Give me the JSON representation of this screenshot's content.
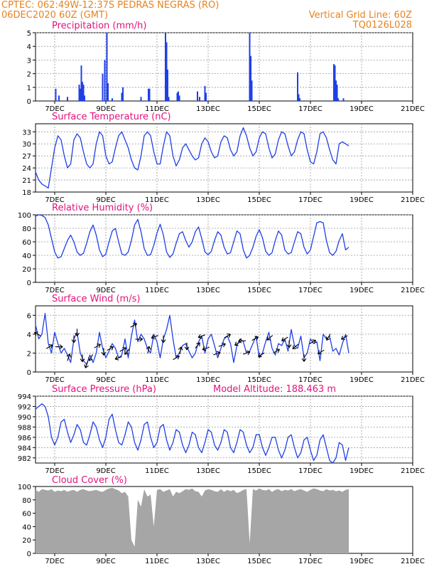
{
  "header": {
    "line1_left": "CPTEC:   062:49W-12:37S   PEDRAS NEGRAS (RO)",
    "line2_left": "06DEC2020 60Z (GMT)",
    "line2_right": "Vertical Grid Line: 60Z",
    "line3_right": "TQ0126L028"
  },
  "colors": {
    "header": "#e8821e",
    "panel_title": "#e3127d",
    "series": "#1f3fe6",
    "cloud": "#a6a6a6",
    "grid": "#9a9a9a"
  },
  "x_axis": {
    "start": "06DEC2020 06Z",
    "end": "21DEC2020 00Z",
    "tick_labels": [
      "7DEC",
      "9DEC",
      "11DEC",
      "13DEC",
      "15DEC",
      "17DEC",
      "19DEC",
      "21DEC"
    ]
  },
  "chart_data": [
    {
      "id": "precip",
      "type": "bar",
      "title": "Precipitation (mm/h)",
      "ylim": [
        0,
        5
      ],
      "yticks": [
        0,
        1,
        2,
        3,
        4,
        5
      ],
      "grid": true,
      "x_hours": [
        19,
        22,
        30,
        41,
        42,
        43,
        44,
        45,
        46,
        63,
        65,
        67,
        68,
        72,
        81,
        82,
        99,
        106,
        107,
        122,
        123,
        124,
        125,
        133,
        134,
        135,
        152,
        154,
        159,
        160,
        201,
        202,
        203,
        246,
        247,
        248,
        280,
        281,
        282,
        283,
        284,
        289
      ],
      "values": [
        0.9,
        0.4,
        0.3,
        1.2,
        0.9,
        2.6,
        1.4,
        1.2,
        0.4,
        2.0,
        3.0,
        5.0,
        1.3,
        0.2,
        0.6,
        1.0,
        0.3,
        0.9,
        0.9,
        5.0,
        4.3,
        2.3,
        0.3,
        0.6,
        0.7,
        0.4,
        0.7,
        0.3,
        1.1,
        0.6,
        5.0,
        3.3,
        1.5,
        2.1,
        0.5,
        0.2,
        2.7,
        2.6,
        1.5,
        1.2,
        0.2,
        0.2
      ]
    },
    {
      "id": "temp",
      "type": "line",
      "title": "Surface Temperature (nC)",
      "ylim": [
        18,
        35
      ],
      "yticks": [
        18,
        21,
        24,
        27,
        30,
        33
      ],
      "grid": true,
      "x_hours": [
        0,
        3,
        6,
        9,
        12,
        15,
        18,
        21,
        24,
        27,
        30,
        33,
        36,
        39,
        42,
        45,
        48,
        51,
        54,
        57,
        60,
        63,
        66,
        69,
        72,
        75,
        78,
        81,
        84,
        87,
        90,
        93,
        96,
        99,
        102,
        105,
        108,
        111,
        114,
        117,
        120,
        123,
        126,
        129,
        132,
        135,
        138,
        141,
        144,
        147,
        150,
        153,
        156,
        159,
        162,
        165,
        168,
        171,
        174,
        177,
        180,
        183,
        186,
        189,
        192,
        195,
        198,
        201,
        204,
        207,
        210,
        213,
        216,
        219,
        222,
        225,
        228,
        231,
        234,
        237,
        240,
        243,
        246,
        249,
        252,
        255,
        258,
        261,
        264,
        267,
        270,
        273,
        276,
        279,
        282,
        285,
        288,
        291,
        294
      ],
      "values": [
        23,
        21,
        20,
        19.5,
        19,
        24,
        29,
        32,
        31,
        27,
        24,
        25,
        31,
        32.5,
        31.5,
        28,
        25,
        24,
        25,
        30,
        33,
        32,
        27,
        25,
        25.5,
        29,
        32,
        33,
        31,
        29,
        26,
        24,
        23.5,
        27,
        32,
        33,
        32,
        28,
        25,
        25,
        29.5,
        33,
        32,
        27,
        24.5,
        26,
        29,
        30,
        28.5,
        27,
        26,
        26.5,
        30,
        31.5,
        30.5,
        28,
        26.5,
        27,
        30.5,
        32,
        31.5,
        28.5,
        27,
        28,
        32,
        34,
        32,
        29,
        27,
        28,
        31.5,
        33,
        32.5,
        29,
        26.5,
        27.5,
        31,
        33,
        32.5,
        29.5,
        27,
        28,
        31,
        33,
        32.5,
        28.5,
        25.5,
        25,
        28,
        32.5,
        33,
        31.5,
        28.5,
        26,
        25,
        30,
        30.5,
        30,
        29.5
      ]
    },
    {
      "id": "rh",
      "type": "line",
      "title": "Relative Humidity (%)",
      "ylim": [
        0,
        100
      ],
      "yticks": [
        0,
        20,
        40,
        60,
        80,
        100
      ],
      "grid": true,
      "x_hours": [
        0,
        3,
        6,
        9,
        12,
        15,
        18,
        21,
        24,
        27,
        30,
        33,
        36,
        39,
        42,
        45,
        48,
        51,
        54,
        57,
        60,
        63,
        66,
        69,
        72,
        75,
        78,
        81,
        84,
        87,
        90,
        93,
        96,
        99,
        102,
        105,
        108,
        111,
        114,
        117,
        120,
        123,
        126,
        129,
        132,
        135,
        138,
        141,
        144,
        147,
        150,
        153,
        156,
        159,
        162,
        165,
        168,
        171,
        174,
        177,
        180,
        183,
        186,
        189,
        192,
        195,
        198,
        201,
        204,
        207,
        210,
        213,
        216,
        219,
        222,
        225,
        228,
        231,
        234,
        237,
        240,
        243,
        246,
        249,
        252,
        255,
        258,
        261,
        264,
        267,
        270,
        273,
        276,
        279,
        282,
        285,
        288,
        291,
        294
      ],
      "values": [
        98,
        100,
        99,
        96,
        85,
        65,
        45,
        36,
        38,
        50,
        62,
        70,
        60,
        45,
        40,
        43,
        58,
        75,
        85,
        70,
        48,
        38,
        42,
        60,
        76,
        80,
        60,
        42,
        40,
        45,
        62,
        85,
        93,
        75,
        50,
        40,
        41,
        55,
        73,
        86,
        70,
        45,
        37,
        42,
        58,
        72,
        75,
        62,
        52,
        60,
        75,
        82,
        65,
        45,
        41,
        46,
        62,
        75,
        70,
        52,
        42,
        44,
        60,
        76,
        72,
        48,
        36,
        40,
        52,
        68,
        78,
        66,
        46,
        40,
        44,
        62,
        76,
        70,
        48,
        42,
        44,
        60,
        75,
        72,
        52,
        42,
        48,
        68,
        88,
        90,
        88,
        62,
        44,
        40,
        46,
        62,
        72,
        48,
        52
      ]
    },
    {
      "id": "wind",
      "type": "line",
      "title": "Surface Wind (m/s)",
      "ylim": [
        0,
        7
      ],
      "yticks": [
        0,
        2,
        4,
        6
      ],
      "grid": true,
      "x_hours": [
        0,
        3,
        6,
        9,
        12,
        15,
        18,
        21,
        24,
        27,
        30,
        33,
        36,
        39,
        42,
        45,
        48,
        51,
        54,
        57,
        60,
        63,
        66,
        69,
        72,
        75,
        78,
        81,
        84,
        87,
        90,
        93,
        96,
        99,
        102,
        105,
        108,
        111,
        114,
        117,
        120,
        123,
        126,
        129,
        132,
        135,
        138,
        141,
        144,
        147,
        150,
        153,
        156,
        159,
        162,
        165,
        168,
        171,
        174,
        177,
        180,
        183,
        186,
        189,
        192,
        195,
        198,
        201,
        204,
        207,
        210,
        213,
        216,
        219,
        222,
        225,
        228,
        231,
        234,
        237,
        240,
        243,
        246,
        249,
        252,
        255,
        258,
        261,
        264,
        267,
        270,
        273,
        276,
        279,
        282,
        285,
        288,
        291,
        294
      ],
      "values": [
        5.0,
        3.5,
        4.0,
        6.2,
        3.0,
        2.0,
        4.2,
        3.0,
        2.0,
        2.5,
        1.8,
        1.0,
        3.5,
        4.2,
        2.0,
        1.2,
        0.8,
        1.8,
        1.0,
        2.0,
        4.2,
        2.5,
        1.5,
        2.2,
        3.0,
        2.5,
        1.5,
        1.8,
        3.5,
        1.5,
        3.8,
        5.5,
        3.2,
        4.0,
        3.5,
        2.5,
        2.0,
        4.0,
        3.2,
        1.5,
        3.5,
        4.5,
        6.0,
        3.5,
        1.5,
        2.0,
        2.8,
        3.0,
        2.2,
        1.5,
        2.0,
        3.2,
        3.8,
        2.0,
        3.5,
        4.0,
        2.8,
        1.5,
        2.5,
        3.5,
        3.8,
        3.0,
        1.0,
        2.8,
        3.5,
        3.2,
        2.0,
        2.2,
        3.0,
        3.8,
        1.5,
        2.0,
        3.2,
        4.2,
        2.5,
        1.8,
        3.0,
        2.8,
        3.5,
        2.2,
        4.5,
        2.8,
        2.5,
        3.8,
        1.5,
        2.0,
        3.5,
        3.0,
        3.2,
        1.2,
        4.0,
        3.5,
        3.8,
        2.2,
        2.5,
        1.8,
        3.0,
        4.0,
        2.0
      ]
    },
    {
      "id": "pressure",
      "type": "line",
      "title": "Surface Pressure (hPa)",
      "annotation": "Model Altitude: 188.463 m",
      "ylim": [
        981,
        994
      ],
      "yticks": [
        982,
        984,
        986,
        988,
        990,
        992,
        994
      ],
      "grid": true,
      "x_hours": [
        0,
        3,
        6,
        9,
        12,
        15,
        18,
        21,
        24,
        27,
        30,
        33,
        36,
        39,
        42,
        45,
        48,
        51,
        54,
        57,
        60,
        63,
        66,
        69,
        72,
        75,
        78,
        81,
        84,
        87,
        90,
        93,
        96,
        99,
        102,
        105,
        108,
        111,
        114,
        117,
        120,
        123,
        126,
        129,
        132,
        135,
        138,
        141,
        144,
        147,
        150,
        153,
        156,
        159,
        162,
        165,
        168,
        171,
        174,
        177,
        180,
        183,
        186,
        189,
        192,
        195,
        198,
        201,
        204,
        207,
        210,
        213,
        216,
        219,
        222,
        225,
        228,
        231,
        234,
        237,
        240,
        243,
        246,
        249,
        252,
        255,
        258,
        261,
        264,
        267,
        270,
        273,
        276,
        279,
        282,
        285,
        288,
        291,
        294
      ],
      "values": [
        991.5,
        992,
        992.5,
        992,
        990,
        986,
        984.5,
        986,
        989,
        989.5,
        987,
        985,
        986.5,
        988.5,
        987.5,
        985,
        984.5,
        986.5,
        989,
        988,
        985.5,
        984,
        986,
        989.5,
        990.5,
        987.5,
        985,
        984.5,
        986.5,
        989,
        988,
        985,
        983.5,
        985.5,
        988.5,
        989,
        986,
        984,
        985,
        988,
        988.5,
        985.5,
        983.5,
        985,
        987.5,
        987,
        984.5,
        983,
        984.5,
        987,
        986.5,
        984,
        983,
        985,
        987.5,
        987,
        984.5,
        983.5,
        985,
        987.5,
        987,
        984,
        983,
        985,
        987.5,
        987,
        984.5,
        983,
        984,
        986.5,
        986.5,
        984,
        982.5,
        984,
        986,
        986,
        983.5,
        982,
        983.5,
        986,
        986.5,
        984,
        982,
        983,
        985.5,
        986,
        983.5,
        981.5,
        982.5,
        985.5,
        986.5,
        984,
        981.5,
        980.5,
        982,
        985,
        984.5,
        981.5,
        984
      ]
    },
    {
      "id": "cloud",
      "type": "area",
      "title": "Cloud Cover (%)",
      "ylim": [
        0,
        100
      ],
      "yticks": [
        0,
        20,
        40,
        60,
        80,
        100
      ],
      "grid": false,
      "x_hours": [
        0,
        3,
        6,
        9,
        12,
        15,
        18,
        21,
        24,
        27,
        30,
        33,
        36,
        39,
        42,
        45,
        48,
        51,
        54,
        57,
        60,
        63,
        66,
        69,
        72,
        75,
        78,
        81,
        84,
        87,
        90,
        93,
        96,
        99,
        102,
        105,
        108,
        111,
        114,
        117,
        120,
        123,
        126,
        129,
        132,
        135,
        138,
        141,
        144,
        147,
        150,
        153,
        156,
        159,
        162,
        165,
        168,
        171,
        174,
        177,
        180,
        183,
        186,
        189,
        192,
        195,
        198,
        201,
        204,
        207,
        210,
        213,
        216,
        219,
        222,
        225,
        228,
        231,
        234,
        237,
        240,
        243,
        246,
        249,
        252,
        255,
        258,
        261,
        264,
        267,
        270,
        273,
        276,
        279,
        282,
        285,
        288,
        291,
        294
      ],
      "values": [
        95,
        92,
        96,
        95,
        94,
        96,
        92,
        94,
        93,
        95,
        92,
        94,
        95,
        92,
        95,
        96,
        94,
        93,
        94,
        95,
        93,
        92,
        95,
        97,
        98,
        96,
        94,
        90,
        92,
        85,
        20,
        10,
        80,
        70,
        96,
        85,
        88,
        40,
        95,
        96,
        92,
        94,
        96,
        85,
        92,
        90,
        93,
        96,
        95,
        97,
        93,
        92,
        85,
        94,
        96,
        95,
        93,
        92,
        96,
        92,
        95,
        93,
        95,
        90,
        92,
        95,
        96,
        15,
        96,
        94,
        97,
        95,
        94,
        96,
        92,
        95,
        96,
        93,
        95,
        94,
        96,
        93,
        95,
        96,
        94,
        92,
        95,
        97,
        96,
        94,
        93,
        96,
        94,
        95,
        93,
        94,
        92,
        95,
        96
      ]
    }
  ],
  "wind_arrows": {
    "x_hours": [
      2,
      13,
      22,
      31,
      36,
      39,
      44,
      48,
      52,
      58,
      64,
      70,
      78,
      82,
      86,
      92,
      97,
      106,
      112,
      120,
      132,
      136,
      142,
      152,
      156,
      160,
      170,
      175,
      180,
      190,
      194,
      198,
      206,
      212,
      220,
      226,
      234,
      238,
      244,
      252,
      260,
      268,
      275,
      290
    ],
    "dir_deg": [
      300,
      60,
      90,
      20,
      180,
      180,
      180,
      200,
      210,
      60,
      180,
      60,
      250,
      60,
      220,
      60,
      90,
      10,
      250,
      180,
      60,
      10,
      180,
      40,
      250,
      250,
      70,
      70,
      60,
      240,
      270,
      70,
      60,
      240,
      230,
      60,
      240,
      180,
      230,
      180,
      60,
      240,
      210,
      240
    ]
  }
}
